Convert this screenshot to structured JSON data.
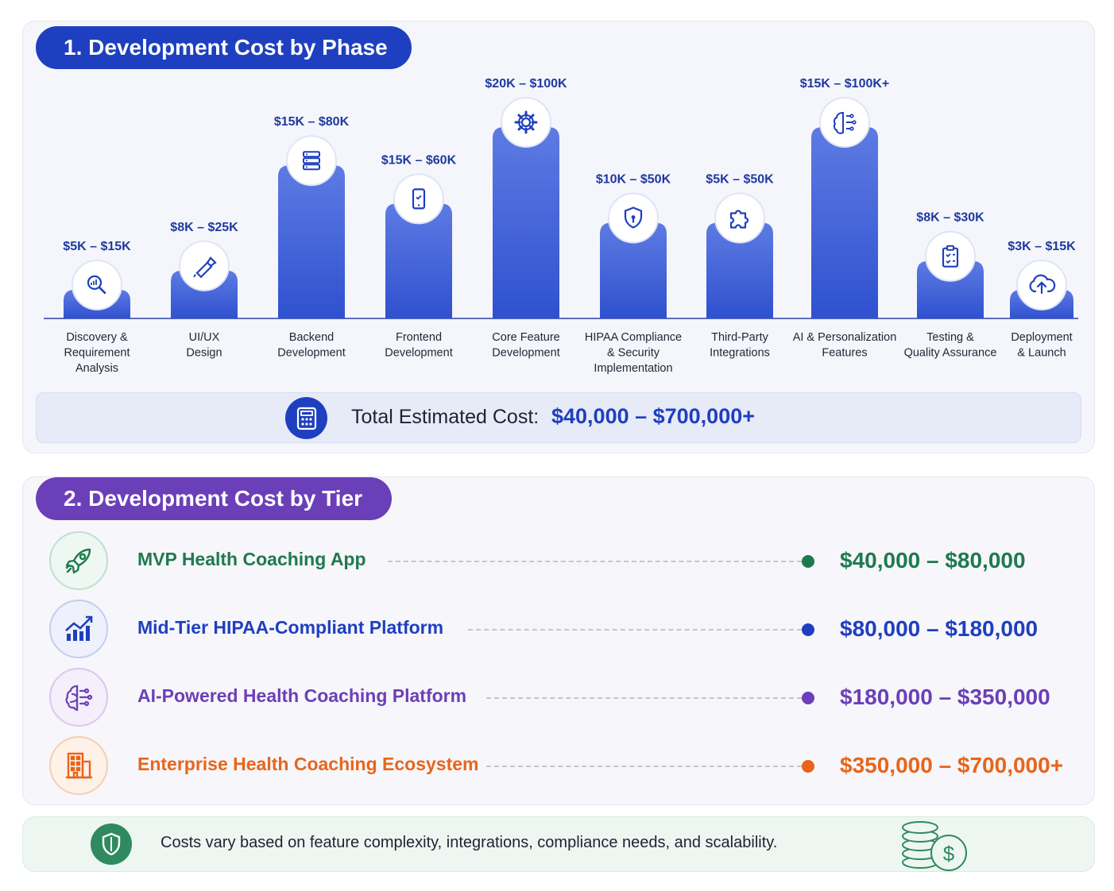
{
  "section1": {
    "title": "1.  Development Cost by Phase"
  },
  "chart_data": {
    "type": "bar",
    "title": "Development Cost by Phase",
    "categories": [
      "Discovery & Requirement Analysis",
      "UI/UX Design",
      "Backend Development",
      "Frontend Development",
      "Core Feature Development",
      "HIPAA Compliance & Security Implementation",
      "Third-Party Integrations",
      "AI & Personalization Features",
      "Testing & Quality Assurance",
      "Deployment & Launch"
    ],
    "category_lines": [
      [
        "Discovery &",
        "Requirement",
        "Analysis"
      ],
      [
        "UI/UX",
        "Design"
      ],
      [
        "Backend",
        "Development"
      ],
      [
        "Frontend",
        "Development"
      ],
      [
        "Core Feature",
        "Development"
      ],
      [
        "HIPAA Compliance",
        "& Security",
        "Implementation"
      ],
      [
        "Third-Party",
        "Integrations"
      ],
      [
        "AI & Personalization",
        "Features"
      ],
      [
        "Testing &",
        "Quality Assurance"
      ],
      [
        "Deployment",
        "& Launch"
      ]
    ],
    "series": [
      {
        "values_min": [
          5000,
          8000,
          15000,
          15000,
          20000,
          10000,
          5000,
          15000,
          8000,
          3000
        ],
        "values": [
          15000,
          25000,
          80000,
          60000,
          100000,
          50000,
          50000,
          100000,
          30000,
          15000
        ]
      }
    ],
    "data_labels": [
      "$5K – $15K",
      "$8K – $25K",
      "$15K – $80K",
      "$15K – $60K",
      "$20K – $100K",
      "$10K – $50K",
      "$5K – $50K",
      "$15K – $100K+",
      "$8K – $30K",
      "$3K – $15K"
    ],
    "icons": [
      "magnifier-chart-icon",
      "pen-tool-icon",
      "server-icon",
      "smartphone-icon",
      "gear-icon",
      "shield-icon",
      "puzzle-icon",
      "ai-brain-icon",
      "clipboard-check-icon",
      "cloud-upload-icon"
    ],
    "bar_color": "#2f51cf"
  },
  "total": {
    "label": "Total Estimated Cost:",
    "value": "$40,000 – $700,000+"
  },
  "section2": {
    "title": "2. Development Cost by Tier"
  },
  "tiers": [
    {
      "name": "MVP Health Coaching App",
      "price": "$40,000 – $80,000",
      "color": "#1e7a4e",
      "icon": "rocket-icon"
    },
    {
      "name": "Mid-Tier HIPAA-Compliant Platform",
      "price": "$80,000 – $180,000",
      "color": "#1e3fbf",
      "icon": "growth-chart-icon"
    },
    {
      "name": "AI-Powered Health Coaching Platform",
      "price": "$180,000 – $350,000",
      "color": "#6b3fb8",
      "icon": "ai-brain-icon"
    },
    {
      "name": "Enterprise Health Coaching Ecosystem",
      "price": "$350,000 – $700,000+",
      "color": "#e8651a",
      "icon": "building-icon"
    }
  ],
  "note": {
    "text": "Costs vary based on feature complexity, integrations, compliance needs, and scalability."
  }
}
